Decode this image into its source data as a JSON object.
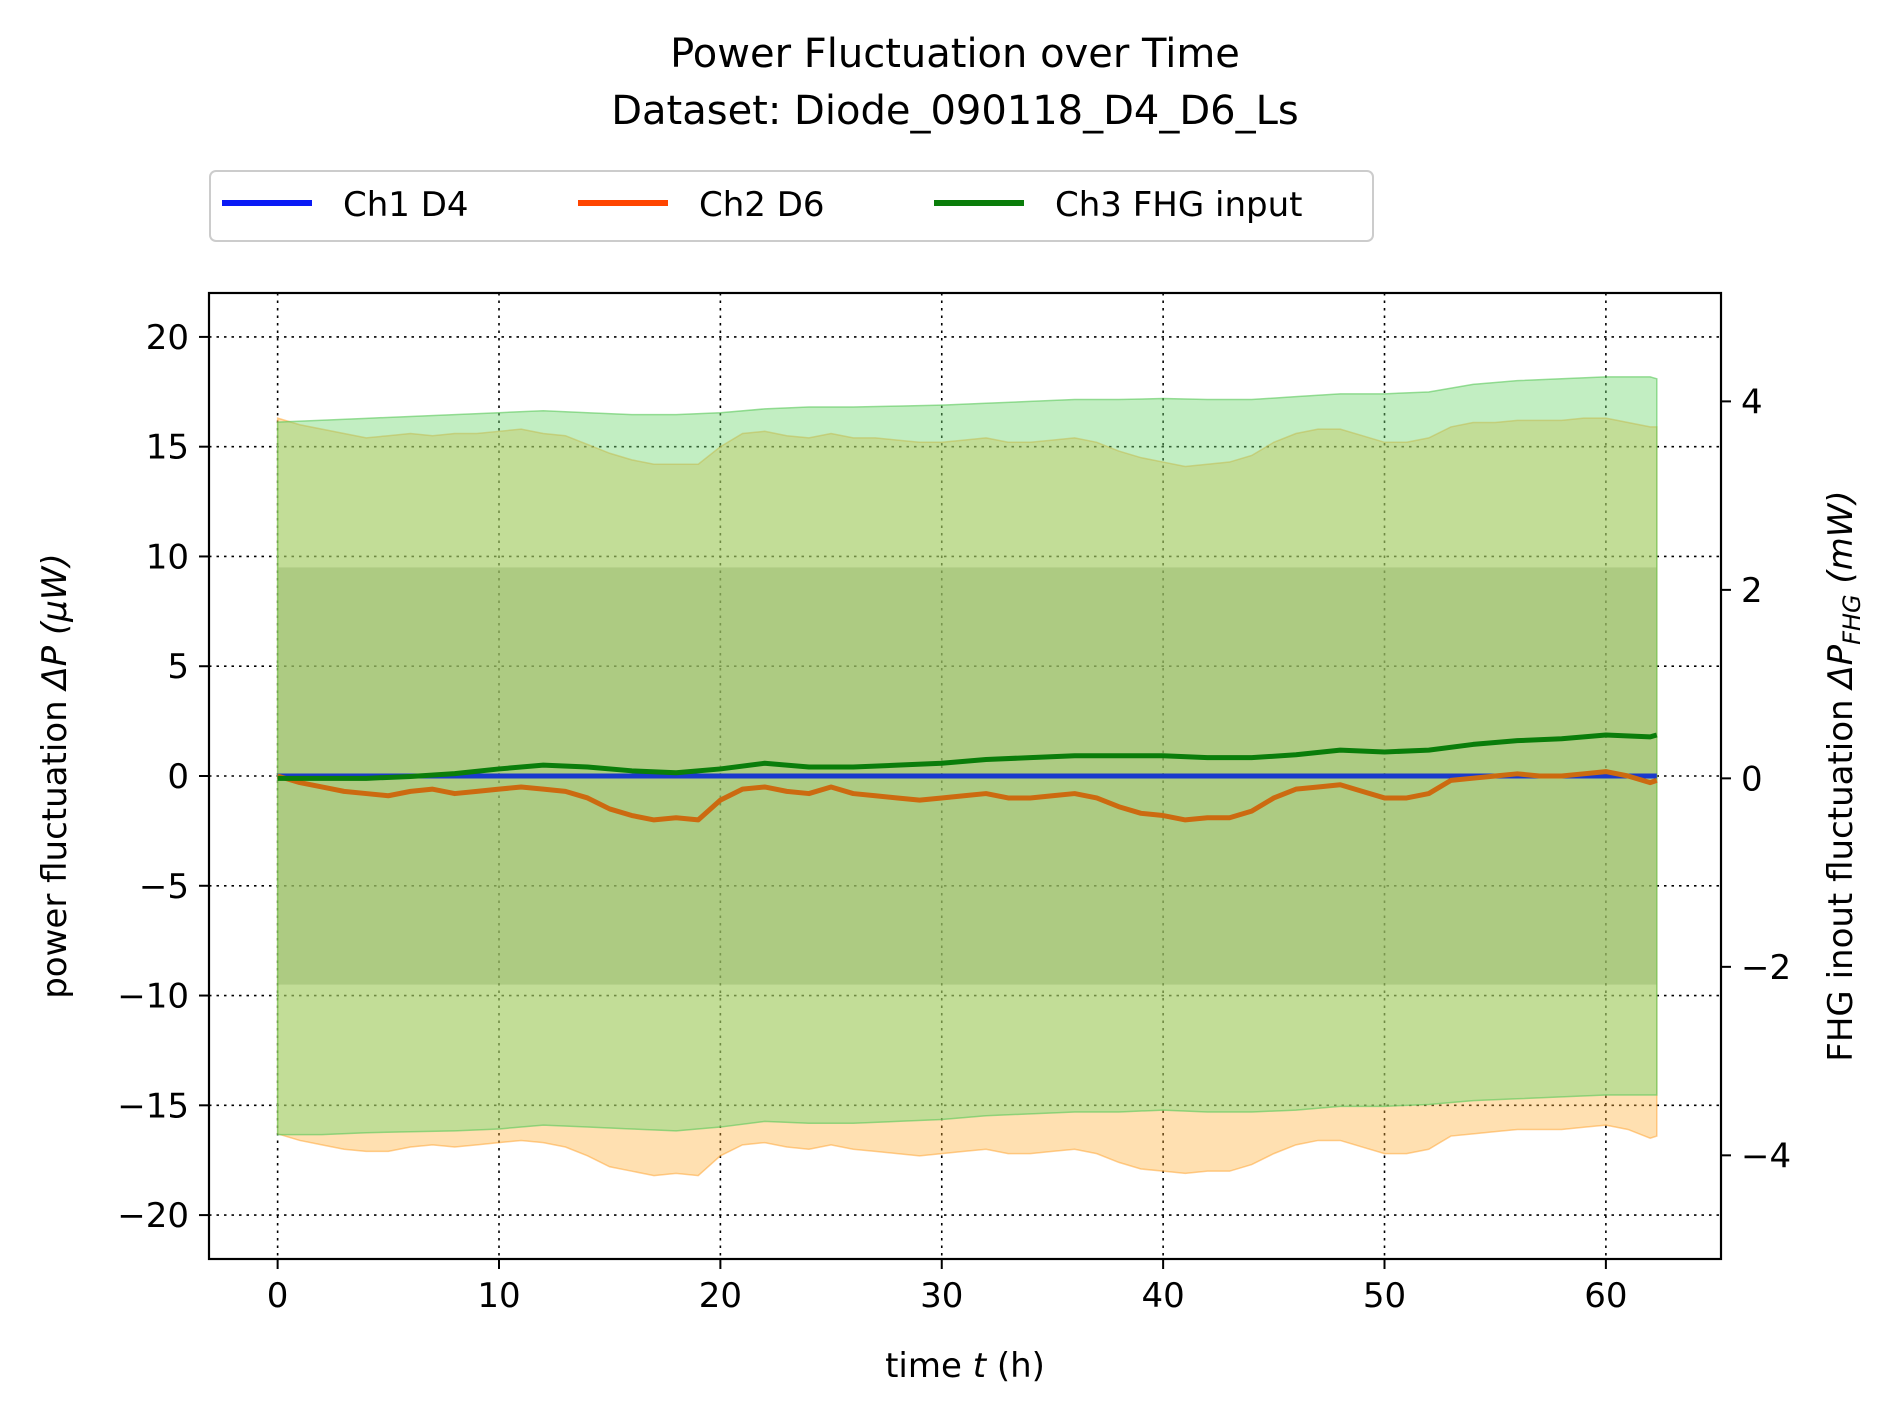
{
  "chart_data": {
    "type": "line",
    "title": "Power Fluctuation over Time",
    "subtitle": "Dataset: Diode_090118_D4_D6_Ls",
    "xlabel": {
      "prefix": "time ",
      "var": "t",
      "suffix": " (h)"
    },
    "ylabel": {
      "prefix": "power fluctuation ",
      "var": "ΔP",
      "suffix": " (μW)"
    },
    "y2label": {
      "prefix": "FHG inout fluctuation ",
      "var": "ΔP",
      "sub": "FHG",
      "suffix": " (mW)"
    },
    "xlim": [
      -3.1,
      65.2
    ],
    "ylim": [
      -22,
      22
    ],
    "y2lim": [
      -5.1,
      5.15
    ],
    "xticks": [
      0,
      10,
      20,
      30,
      40,
      50,
      60
    ],
    "yticks": [
      -20,
      -15,
      -10,
      -5,
      0,
      5,
      10,
      15,
      20
    ],
    "y2ticks": [
      -4,
      -2,
      0,
      2,
      4
    ],
    "grid": true,
    "legend_position": "top-left, above plot",
    "legend": [
      "Ch1 D4",
      "Ch2 D6",
      "Ch3 FHG input"
    ],
    "colors": {
      "ch1": "#0a1af5",
      "ch1_line": "#1a3acc",
      "ch2_legend": "#ff4500",
      "ch2_line": "#cc6a10",
      "ch3": "#0a7d0a",
      "ch1_band": "rgba(90,110,90,0.38)",
      "ch2_band": "rgba(255,178,60,0.40)",
      "ch3_band": "rgba(120,218,120,0.45)"
    },
    "series": [
      {
        "name": "Ch1 D4",
        "axis": "left",
        "x": [
          0,
          62.3
        ],
        "values": [
          0,
          0
        ],
        "band": [
          -9.5,
          9.5
        ]
      },
      {
        "name": "Ch2 D6",
        "axis": "left",
        "x": [
          0,
          1,
          2,
          3,
          4,
          5,
          6,
          7,
          8,
          9,
          10,
          11,
          12,
          13,
          14,
          15,
          16,
          17,
          18,
          19,
          20,
          21,
          22,
          23,
          24,
          25,
          26,
          27,
          28,
          29,
          30,
          31,
          32,
          33,
          34,
          35,
          36,
          37,
          38,
          39,
          40,
          41,
          42,
          43,
          44,
          45,
          46,
          47,
          48,
          49,
          50,
          51,
          52,
          53,
          54,
          55,
          56,
          57,
          58,
          59,
          60,
          61,
          62,
          62.3
        ],
        "values": [
          0,
          -0.3,
          -0.5,
          -0.7,
          -0.8,
          -0.9,
          -0.7,
          -0.6,
          -0.8,
          -0.7,
          -0.6,
          -0.5,
          -0.6,
          -0.7,
          -1.0,
          -1.5,
          -1.8,
          -2.0,
          -1.9,
          -2.0,
          -1.1,
          -0.6,
          -0.5,
          -0.7,
          -0.8,
          -0.5,
          -0.8,
          -0.9,
          -1.0,
          -1.1,
          -1.0,
          -0.9,
          -0.8,
          -1.0,
          -1.0,
          -0.9,
          -0.8,
          -1.0,
          -1.4,
          -1.7,
          -1.8,
          -2.0,
          -1.9,
          -1.9,
          -1.6,
          -1.0,
          -0.6,
          -0.5,
          -0.4,
          -0.7,
          -1.0,
          -1.0,
          -0.8,
          -0.2,
          -0.1,
          0.0,
          0.1,
          0.0,
          0.0,
          0.1,
          0.2,
          0.0,
          -0.3,
          -0.2
        ],
        "band_upper": [
          16.3,
          16.0,
          15.8,
          15.6,
          15.4,
          15.5,
          15.6,
          15.5,
          15.6,
          15.6,
          15.7,
          15.8,
          15.6,
          15.5,
          15.1,
          14.7,
          14.4,
          14.2,
          14.2,
          14.2,
          15.0,
          15.6,
          15.7,
          15.5,
          15.4,
          15.6,
          15.4,
          15.4,
          15.3,
          15.2,
          15.2,
          15.3,
          15.4,
          15.2,
          15.2,
          15.3,
          15.4,
          15.2,
          14.8,
          14.5,
          14.3,
          14.1,
          14.2,
          14.3,
          14.6,
          15.2,
          15.6,
          15.8,
          15.8,
          15.5,
          15.2,
          15.2,
          15.4,
          15.9,
          16.1,
          16.1,
          16.2,
          16.2,
          16.2,
          16.3,
          16.3,
          16.1,
          15.9,
          15.9
        ],
        "band_lower": [
          -16.3,
          -16.6,
          -16.8,
          -17.0,
          -17.1,
          -17.1,
          -16.9,
          -16.8,
          -16.9,
          -16.8,
          -16.7,
          -16.6,
          -16.7,
          -16.9,
          -17.3,
          -17.8,
          -18.0,
          -18.2,
          -18.1,
          -18.2,
          -17.3,
          -16.8,
          -16.7,
          -16.9,
          -17.0,
          -16.8,
          -17.0,
          -17.1,
          -17.2,
          -17.3,
          -17.2,
          -17.1,
          -17.0,
          -17.2,
          -17.2,
          -17.1,
          -17.0,
          -17.2,
          -17.6,
          -17.9,
          -18.0,
          -18.1,
          -18.0,
          -18.0,
          -17.7,
          -17.2,
          -16.8,
          -16.6,
          -16.6,
          -16.9,
          -17.2,
          -17.2,
          -17.0,
          -16.4,
          -16.3,
          -16.2,
          -16.1,
          -16.1,
          -16.1,
          -16.0,
          -15.9,
          -16.1,
          -16.5,
          -16.4
        ]
      },
      {
        "name": "Ch3 FHG input",
        "axis": "right",
        "x": [
          0,
          2,
          4,
          6,
          8,
          10,
          12,
          14,
          16,
          18,
          20,
          22,
          24,
          26,
          28,
          30,
          32,
          34,
          36,
          38,
          40,
          42,
          44,
          46,
          48,
          50,
          52,
          54,
          56,
          58,
          60,
          62,
          62.3
        ],
        "values": [
          0.0,
          0.0,
          0.0,
          0.02,
          0.05,
          0.1,
          0.14,
          0.12,
          0.08,
          0.06,
          0.1,
          0.16,
          0.12,
          0.12,
          0.14,
          0.16,
          0.2,
          0.22,
          0.24,
          0.24,
          0.24,
          0.22,
          0.22,
          0.25,
          0.3,
          0.28,
          0.3,
          0.36,
          0.4,
          0.42,
          0.46,
          0.44,
          0.46
        ],
        "band_upper": [
          3.78,
          3.8,
          3.82,
          3.84,
          3.86,
          3.88,
          3.9,
          3.88,
          3.86,
          3.86,
          3.88,
          3.92,
          3.94,
          3.94,
          3.95,
          3.96,
          3.98,
          4.0,
          4.02,
          4.02,
          4.03,
          4.02,
          4.02,
          4.05,
          4.08,
          4.08,
          4.1,
          4.18,
          4.22,
          4.24,
          4.26,
          4.26,
          4.24
        ],
        "band_lower": [
          -3.78,
          -3.78,
          -3.76,
          -3.75,
          -3.74,
          -3.72,
          -3.68,
          -3.7,
          -3.72,
          -3.74,
          -3.7,
          -3.64,
          -3.66,
          -3.66,
          -3.64,
          -3.62,
          -3.58,
          -3.56,
          -3.54,
          -3.54,
          -3.52,
          -3.54,
          -3.54,
          -3.52,
          -3.48,
          -3.48,
          -3.46,
          -3.42,
          -3.4,
          -3.38,
          -3.36,
          -3.36,
          -3.36
        ]
      }
    ]
  }
}
